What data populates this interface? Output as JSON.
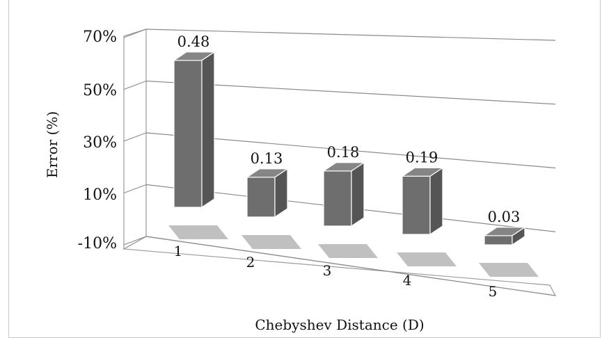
{
  "chart_data": {
    "type": "bar",
    "categories": [
      "1",
      "2",
      "3",
      "4",
      "5"
    ],
    "values": [
      0.48,
      0.13,
      0.18,
      0.19,
      0.03
    ],
    "data_labels": [
      "0.48",
      "0.13",
      "0.18",
      "0.19",
      "0.03"
    ],
    "yticks": [
      "70%",
      "50%",
      "30%",
      "10%",
      "-10%"
    ],
    "ylabel": "Error (%)",
    "xlabel": "Chebyshev  Distance (D)",
    "ylim": [
      -0.1,
      0.7
    ],
    "grid": true,
    "legend": "none",
    "bar_color": "#6e6e6e"
  }
}
